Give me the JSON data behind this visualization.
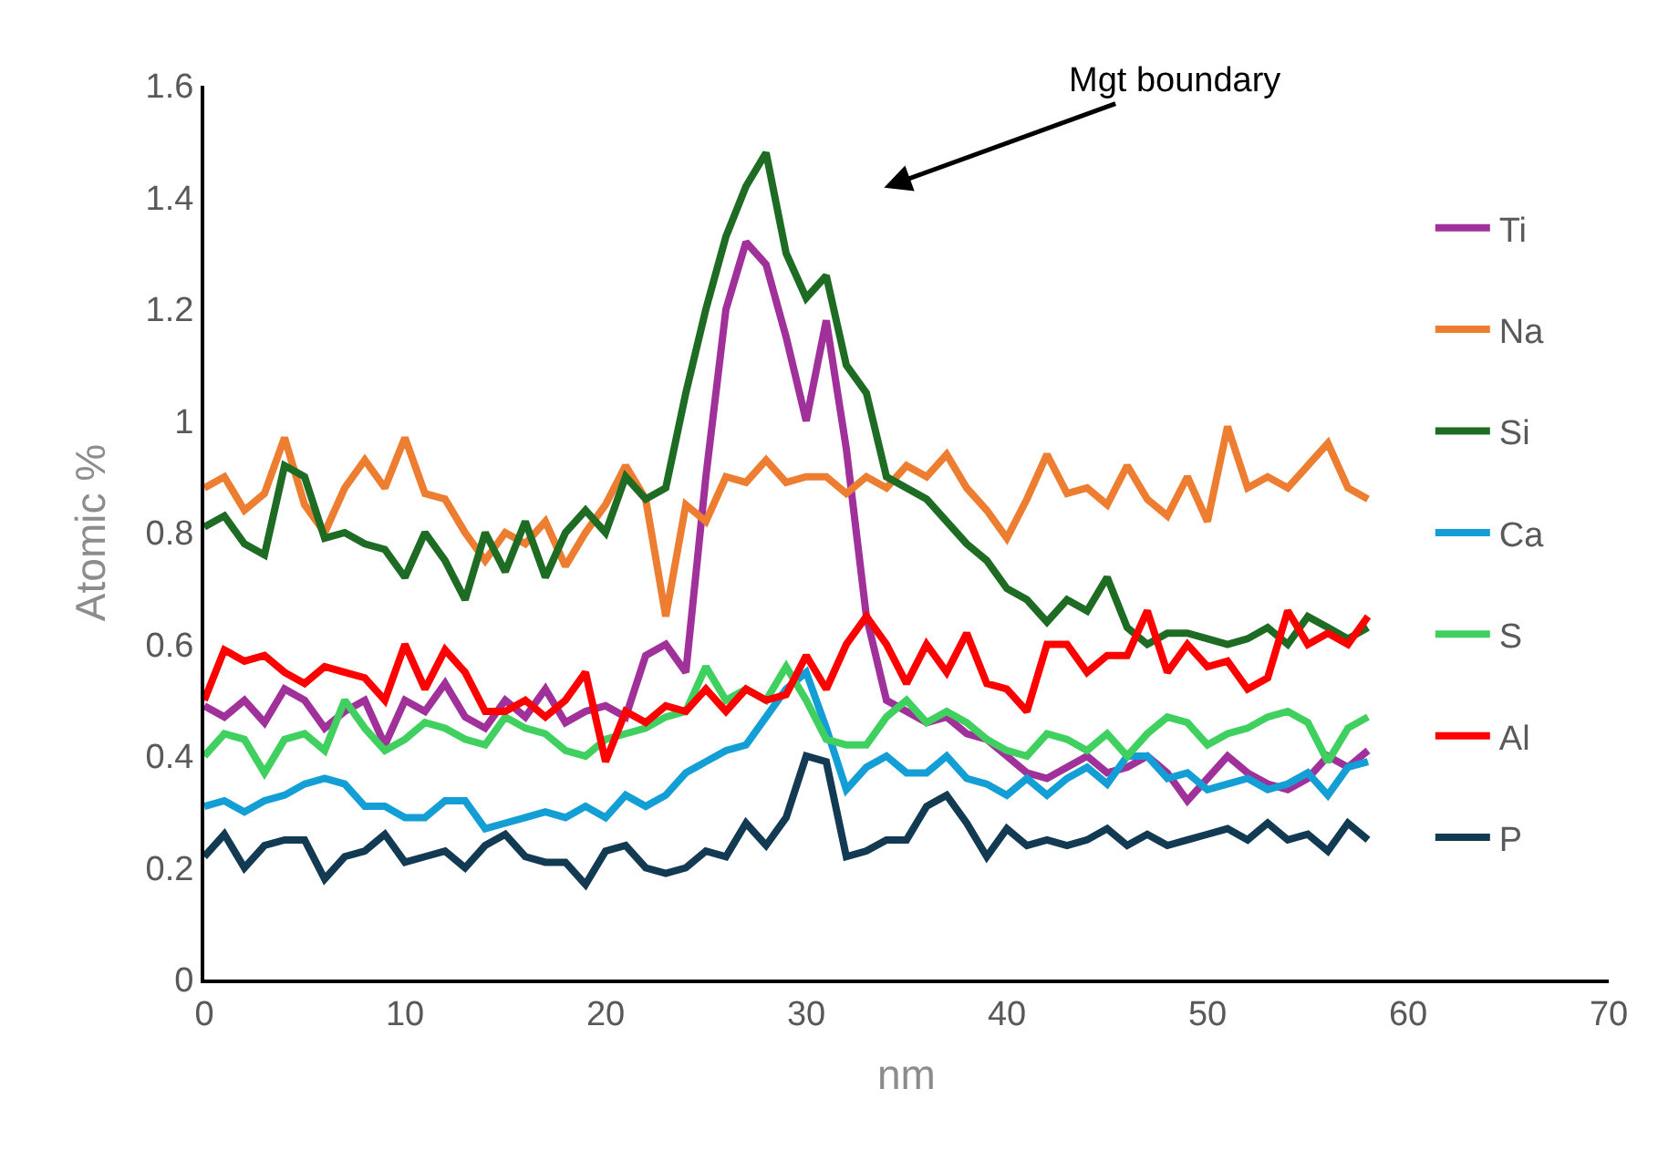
{
  "chart_data": {
    "type": "line",
    "xlabel": "nm",
    "ylabel": "Atomic %",
    "x": [
      0,
      1,
      2,
      3,
      4,
      5,
      6,
      7,
      8,
      9,
      10,
      11,
      12,
      13,
      14,
      15,
      16,
      17,
      18,
      19,
      20,
      21,
      22,
      23,
      24,
      25,
      26,
      27,
      28,
      29,
      30,
      31,
      32,
      33,
      34,
      35,
      36,
      37,
      38,
      39,
      40,
      41,
      42,
      43,
      44,
      45,
      46,
      47,
      48,
      49,
      50,
      51,
      52,
      53,
      54,
      55,
      56,
      57,
      58
    ],
    "xlim": [
      0,
      70
    ],
    "xticks": [
      0,
      10,
      20,
      30,
      40,
      50,
      60,
      70
    ],
    "ylim": [
      0,
      1.6
    ],
    "yticks": [
      0,
      {
        "value": 0.2,
        "label": "0.2"
      },
      {
        "value": 0.4,
        "label": "0.4"
      },
      {
        "value": 0.6,
        "label": "0.6"
      },
      {
        "value": 0.8,
        "label": "0.8"
      },
      1,
      {
        "value": 1.2,
        "label": "1.2"
      },
      {
        "value": 1.4,
        "label": "1.4"
      },
      {
        "value": 1.6,
        "label": "1.6"
      }
    ],
    "legend": "right",
    "marker": "none",
    "line_style": "solid",
    "annotations": [
      "Mgt boundary"
    ],
    "series": [
      {
        "name": "Ti",
        "color": "#a0309a",
        "values": [
          0.49,
          0.47,
          0.5,
          0.46,
          0.52,
          0.5,
          0.45,
          0.48,
          0.5,
          0.42,
          0.5,
          0.48,
          0.53,
          0.47,
          0.45,
          0.5,
          0.47,
          0.52,
          0.46,
          0.48,
          0.49,
          0.47,
          0.58,
          0.6,
          0.55,
          0.9,
          1.2,
          1.32,
          1.28,
          1.15,
          1.0,
          1.18,
          0.95,
          0.65,
          0.5,
          0.48,
          0.46,
          0.47,
          0.44,
          0.43,
          0.4,
          0.37,
          0.36,
          0.38,
          0.4,
          0.37,
          0.38,
          0.4,
          0.37,
          0.32,
          0.36,
          0.4,
          0.37,
          0.35,
          0.34,
          0.36,
          0.4,
          0.38,
          0.41
        ]
      },
      {
        "name": "Na",
        "color": "#ed7d31",
        "values": [
          0.88,
          0.9,
          0.84,
          0.87,
          0.97,
          0.85,
          0.8,
          0.88,
          0.93,
          0.88,
          0.97,
          0.87,
          0.86,
          0.8,
          0.75,
          0.8,
          0.78,
          0.82,
          0.74,
          0.8,
          0.85,
          0.92,
          0.86,
          0.65,
          0.85,
          0.82,
          0.9,
          0.89,
          0.93,
          0.89,
          0.9,
          0.9,
          0.87,
          0.9,
          0.88,
          0.92,
          0.9,
          0.94,
          0.88,
          0.84,
          0.79,
          0.86,
          0.94,
          0.87,
          0.88,
          0.85,
          0.92,
          0.86,
          0.83,
          0.9,
          0.82,
          0.99,
          0.88,
          0.9,
          0.88,
          0.92,
          0.96,
          0.88,
          0.86
        ]
      },
      {
        "name": "Si",
        "color": "#1e6b23",
        "values": [
          0.81,
          0.83,
          0.78,
          0.76,
          0.92,
          0.9,
          0.79,
          0.8,
          0.78,
          0.77,
          0.72,
          0.8,
          0.75,
          0.68,
          0.8,
          0.73,
          0.82,
          0.72,
          0.8,
          0.84,
          0.8,
          0.9,
          0.86,
          0.88,
          1.05,
          1.2,
          1.33,
          1.42,
          1.48,
          1.3,
          1.22,
          1.26,
          1.1,
          1.05,
          0.9,
          0.88,
          0.86,
          0.82,
          0.78,
          0.75,
          0.7,
          0.68,
          0.64,
          0.68,
          0.66,
          0.72,
          0.63,
          0.6,
          0.62,
          0.62,
          0.61,
          0.6,
          0.61,
          0.63,
          0.6,
          0.65,
          0.63,
          0.61,
          0.63
        ]
      },
      {
        "name": "Ca",
        "color": "#149ed6",
        "values": [
          0.31,
          0.32,
          0.3,
          0.32,
          0.33,
          0.35,
          0.36,
          0.35,
          0.31,
          0.31,
          0.29,
          0.29,
          0.32,
          0.32,
          0.27,
          0.28,
          0.29,
          0.3,
          0.29,
          0.31,
          0.29,
          0.33,
          0.31,
          0.33,
          0.37,
          0.39,
          0.41,
          0.42,
          0.47,
          0.52,
          0.55,
          0.45,
          0.34,
          0.38,
          0.4,
          0.37,
          0.37,
          0.4,
          0.36,
          0.35,
          0.33,
          0.36,
          0.33,
          0.36,
          0.38,
          0.35,
          0.4,
          0.4,
          0.36,
          0.37,
          0.34,
          0.35,
          0.36,
          0.34,
          0.35,
          0.37,
          0.33,
          0.38,
          0.39
        ]
      },
      {
        "name": "S",
        "color": "#40d060",
        "values": [
          0.4,
          0.44,
          0.43,
          0.37,
          0.43,
          0.44,
          0.41,
          0.5,
          0.45,
          0.41,
          0.43,
          0.46,
          0.45,
          0.43,
          0.42,
          0.47,
          0.45,
          0.44,
          0.41,
          0.4,
          0.43,
          0.44,
          0.45,
          0.47,
          0.48,
          0.56,
          0.5,
          0.52,
          0.5,
          0.56,
          0.5,
          0.43,
          0.42,
          0.42,
          0.47,
          0.5,
          0.46,
          0.48,
          0.46,
          0.43,
          0.41,
          0.4,
          0.44,
          0.43,
          0.41,
          0.44,
          0.4,
          0.44,
          0.47,
          0.46,
          0.42,
          0.44,
          0.45,
          0.47,
          0.48,
          0.46,
          0.39,
          0.45,
          0.47
        ]
      },
      {
        "name": "Al",
        "color": "#ff0000",
        "values": [
          0.5,
          0.59,
          0.57,
          0.58,
          0.55,
          0.53,
          0.56,
          0.55,
          0.54,
          0.5,
          0.6,
          0.52,
          0.59,
          0.55,
          0.48,
          0.48,
          0.5,
          0.47,
          0.5,
          0.55,
          0.39,
          0.48,
          0.46,
          0.49,
          0.48,
          0.52,
          0.48,
          0.52,
          0.5,
          0.51,
          0.58,
          0.52,
          0.6,
          0.65,
          0.6,
          0.53,
          0.6,
          0.55,
          0.62,
          0.53,
          0.52,
          0.48,
          0.6,
          0.6,
          0.55,
          0.58,
          0.58,
          0.66,
          0.55,
          0.6,
          0.56,
          0.57,
          0.52,
          0.54,
          0.66,
          0.6,
          0.62,
          0.6,
          0.65
        ]
      },
      {
        "name": "P",
        "color": "#123a52",
        "values": [
          0.22,
          0.26,
          0.2,
          0.24,
          0.25,
          0.25,
          0.18,
          0.22,
          0.23,
          0.26,
          0.21,
          0.22,
          0.23,
          0.2,
          0.24,
          0.26,
          0.22,
          0.21,
          0.21,
          0.17,
          0.23,
          0.24,
          0.2,
          0.19,
          0.2,
          0.23,
          0.22,
          0.28,
          0.24,
          0.29,
          0.4,
          0.39,
          0.22,
          0.23,
          0.25,
          0.25,
          0.31,
          0.33,
          0.28,
          0.22,
          0.27,
          0.24,
          0.25,
          0.24,
          0.25,
          0.27,
          0.24,
          0.26,
          0.24,
          0.25,
          0.26,
          0.27,
          0.25,
          0.28,
          0.25,
          0.26,
          0.23,
          0.28,
          0.25
        ]
      }
    ]
  }
}
